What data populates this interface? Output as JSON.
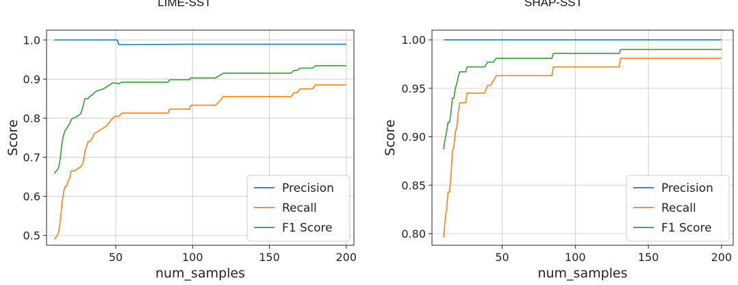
{
  "chart_data": [
    {
      "type": "line",
      "title": "LIME-SST",
      "xlabel": "num_samples",
      "ylabel": "Score",
      "xlim": [
        5,
        205
      ],
      "ylim": [
        0.475,
        1.025
      ],
      "xticks": [
        50,
        100,
        150,
        200
      ],
      "yticks": [
        0.5,
        0.6,
        0.7,
        0.8,
        0.9,
        1.0
      ],
      "ytick_labels": [
        "0.5",
        "0.6",
        "0.7",
        "0.8",
        "0.9",
        "1.0"
      ],
      "grid": true,
      "legend_position": "lower-right",
      "series": [
        {
          "name": "Precision",
          "color": "#1f77b4",
          "x": [
            10,
            51,
            52,
            60,
            100,
            150,
            200
          ],
          "y": [
            1.0,
            1.0,
            0.988,
            0.988,
            0.989,
            0.989,
            0.989
          ]
        },
        {
          "name": "Recall",
          "color": "#ff7f0e",
          "x": [
            10,
            12,
            13,
            14,
            15,
            16,
            17,
            18,
            19,
            20,
            21,
            22,
            23,
            25,
            27,
            28,
            29,
            30,
            32,
            33,
            35,
            36,
            38,
            40,
            42,
            44,
            46,
            48,
            50,
            52,
            54,
            60,
            70,
            84,
            85,
            98,
            99,
            115,
            118,
            120,
            164,
            166,
            168,
            170,
            178,
            180,
            200
          ],
          "y": [
            0.49,
            0.5,
            0.51,
            0.54,
            0.58,
            0.61,
            0.625,
            0.625,
            0.64,
            0.645,
            0.665,
            0.665,
            0.665,
            0.67,
            0.675,
            0.68,
            0.69,
            0.715,
            0.74,
            0.74,
            0.75,
            0.76,
            0.765,
            0.77,
            0.775,
            0.78,
            0.79,
            0.8,
            0.805,
            0.805,
            0.813,
            0.813,
            0.813,
            0.813,
            0.823,
            0.823,
            0.833,
            0.833,
            0.845,
            0.855,
            0.855,
            0.865,
            0.865,
            0.875,
            0.875,
            0.885,
            0.885
          ]
        },
        {
          "name": "F1 Score",
          "color": "#2ca02c",
          "x": [
            10,
            12,
            13,
            14,
            15,
            16,
            17,
            18,
            19,
            20,
            21,
            22,
            23,
            25,
            27,
            28,
            29,
            30,
            32,
            33,
            35,
            36,
            38,
            40,
            42,
            44,
            46,
            48,
            50,
            52,
            54,
            60,
            70,
            84,
            85,
            98,
            99,
            115,
            118,
            120,
            164,
            166,
            168,
            170,
            178,
            180,
            200
          ],
          "y": [
            0.658,
            0.668,
            0.675,
            0.7,
            0.735,
            0.755,
            0.768,
            0.772,
            0.78,
            0.785,
            0.795,
            0.8,
            0.8,
            0.805,
            0.81,
            0.82,
            0.835,
            0.85,
            0.85,
            0.855,
            0.86,
            0.865,
            0.87,
            0.872,
            0.875,
            0.88,
            0.885,
            0.89,
            0.89,
            0.888,
            0.892,
            0.892,
            0.892,
            0.892,
            0.898,
            0.898,
            0.903,
            0.903,
            0.91,
            0.915,
            0.915,
            0.922,
            0.922,
            0.928,
            0.928,
            0.934,
            0.934
          ]
        }
      ]
    },
    {
      "type": "line",
      "title": "SHAP-SST",
      "xlabel": "num_samples",
      "ylabel": "Score",
      "xlim": [
        2,
        208
      ],
      "ylim": [
        0.788,
        1.01
      ],
      "xticks": [
        50,
        100,
        150,
        200
      ],
      "yticks": [
        0.8,
        0.85,
        0.9,
        0.95,
        1.0
      ],
      "ytick_labels": [
        "0.80",
        "0.85",
        "0.90",
        "0.95",
        "1.00"
      ],
      "grid": true,
      "legend_position": "lower-right",
      "series": [
        {
          "name": "Precision",
          "color": "#1f77b4",
          "x": [
            10,
            200
          ],
          "y": [
            1.0,
            1.0
          ]
        },
        {
          "name": "Recall",
          "color": "#ff7f0e",
          "x": [
            10,
            11,
            12,
            13,
            14,
            15,
            16,
            17,
            18,
            19,
            20,
            21,
            22,
            23,
            25,
            26,
            28,
            30,
            33,
            36,
            38,
            40,
            42,
            44,
            46,
            48,
            50,
            84,
            85,
            130,
            131,
            200
          ],
          "y": [
            0.796,
            0.815,
            0.825,
            0.843,
            0.843,
            0.86,
            0.885,
            0.89,
            0.905,
            0.91,
            0.925,
            0.935,
            0.935,
            0.935,
            0.935,
            0.945,
            0.945,
            0.945,
            0.945,
            0.945,
            0.945,
            0.953,
            0.953,
            0.958,
            0.963,
            0.963,
            0.963,
            0.963,
            0.972,
            0.972,
            0.981,
            0.981
          ]
        },
        {
          "name": "F1 Score",
          "color": "#2ca02c",
          "x": [
            10,
            11,
            12,
            13,
            14,
            15,
            16,
            17,
            18,
            19,
            20,
            21,
            22,
            23,
            25,
            26,
            28,
            30,
            33,
            36,
            38,
            40,
            42,
            44,
            46,
            48,
            50,
            84,
            85,
            130,
            131,
            200
          ],
          "y": [
            0.887,
            0.898,
            0.905,
            0.915,
            0.915,
            0.925,
            0.94,
            0.94,
            0.95,
            0.955,
            0.962,
            0.967,
            0.967,
            0.967,
            0.967,
            0.972,
            0.972,
            0.972,
            0.972,
            0.972,
            0.972,
            0.977,
            0.977,
            0.977,
            0.981,
            0.981,
            0.981,
            0.981,
            0.986,
            0.986,
            0.99,
            0.99
          ]
        }
      ]
    }
  ]
}
